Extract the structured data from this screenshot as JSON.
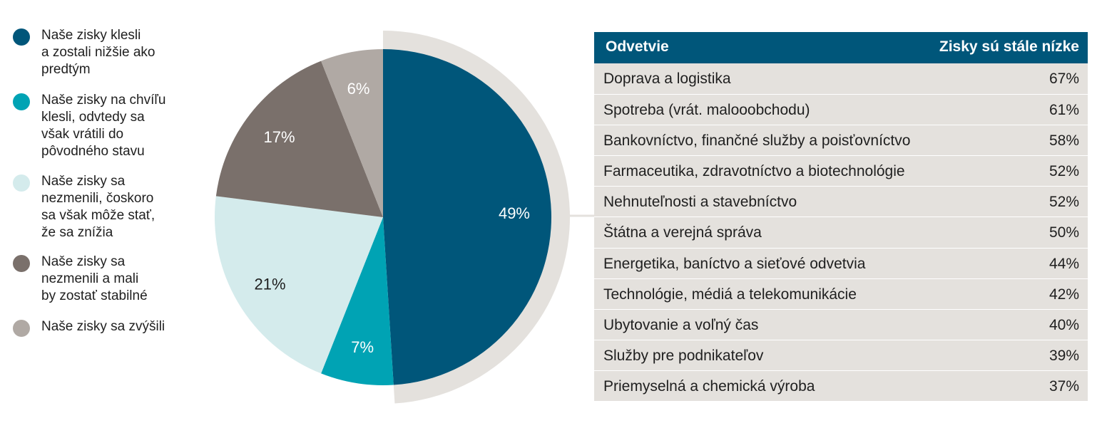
{
  "legend": [
    {
      "label": "Naše zisky klesli\na zostali nižšie ako\npredtým",
      "color": "#00567a"
    },
    {
      "label": "Naše zisky na chvíľu\nklesli, odvtedy sa\nvšak vrátili do\npôvodného stavu",
      "color": "#00a3b4"
    },
    {
      "label": "Naše zisky sa\nnezmenili, čoskoro\nsa však môže stať,\nže sa znížia",
      "color": "#d4ebec"
    },
    {
      "label": "Naše zisky sa\nnezmenili a mali\nby zostať stabilné",
      "color": "#7a706b"
    },
    {
      "label": "Naše zisky sa zvýšili",
      "color": "#b0a9a4"
    }
  ],
  "chart_data": [
    {
      "type": "pie",
      "slices": [
        {
          "category": "Naše zisky klesli a zostali nižšie ako predtým",
          "value": 49,
          "label": "49%",
          "color": "#00567a",
          "label_color": "#ffffff"
        },
        {
          "category": "Naše zisky na chvíľu klesli, odvtedy sa však vrátili do pôvodného stavu",
          "value": 7,
          "label": "7%",
          "color": "#00a3b4",
          "label_color": "#ffffff"
        },
        {
          "category": "Naše zisky sa nezmenili, čoskoro sa však môže stať, že sa znížia",
          "value": 21,
          "label": "21%",
          "color": "#d4ebec",
          "label_color": "#1f1f1f"
        },
        {
          "category": "Naše zisky sa nezmenili a mali by zostať stabilné",
          "value": 17,
          "label": "17%",
          "color": "#7a706b",
          "label_color": "#ffffff"
        },
        {
          "category": "Naše zisky sa zvýšili",
          "value": 6,
          "label": "6%",
          "color": "#b0a9a4",
          "label_color": "#ffffff"
        }
      ],
      "highlight_color": "#e4e1dd"
    },
    {
      "type": "table",
      "columns": [
        "Odvetvie",
        "Zisky sú stále nízke"
      ],
      "rows": [
        [
          "Doprava a logistika",
          "67%"
        ],
        [
          "Spotreba (vrát. malooobchodu)",
          "61%"
        ],
        [
          "Bankovníctvo, finančné služby a poisťovníctvo",
          "58%"
        ],
        [
          "Farmaceutika, zdravotníctvo a biotechnológie",
          "52%"
        ],
        [
          "Nehnuteľnosti a stavebníctvo",
          "52%"
        ],
        [
          "Štátna a verejná správa",
          "50%"
        ],
        [
          "Energetika, baníctvo a sieťové odvetvia",
          "44%"
        ],
        [
          "Technológie, médiá a telekomunikácie",
          "42%"
        ],
        [
          "Ubytovanie a voľný čas",
          "40%"
        ],
        [
          "Služby pre podnikateľov",
          "39%"
        ],
        [
          "Priemyselná a chemická výroba",
          "37%"
        ]
      ],
      "header_color": "#00567a",
      "row_color": "#e4e1dd"
    }
  ]
}
